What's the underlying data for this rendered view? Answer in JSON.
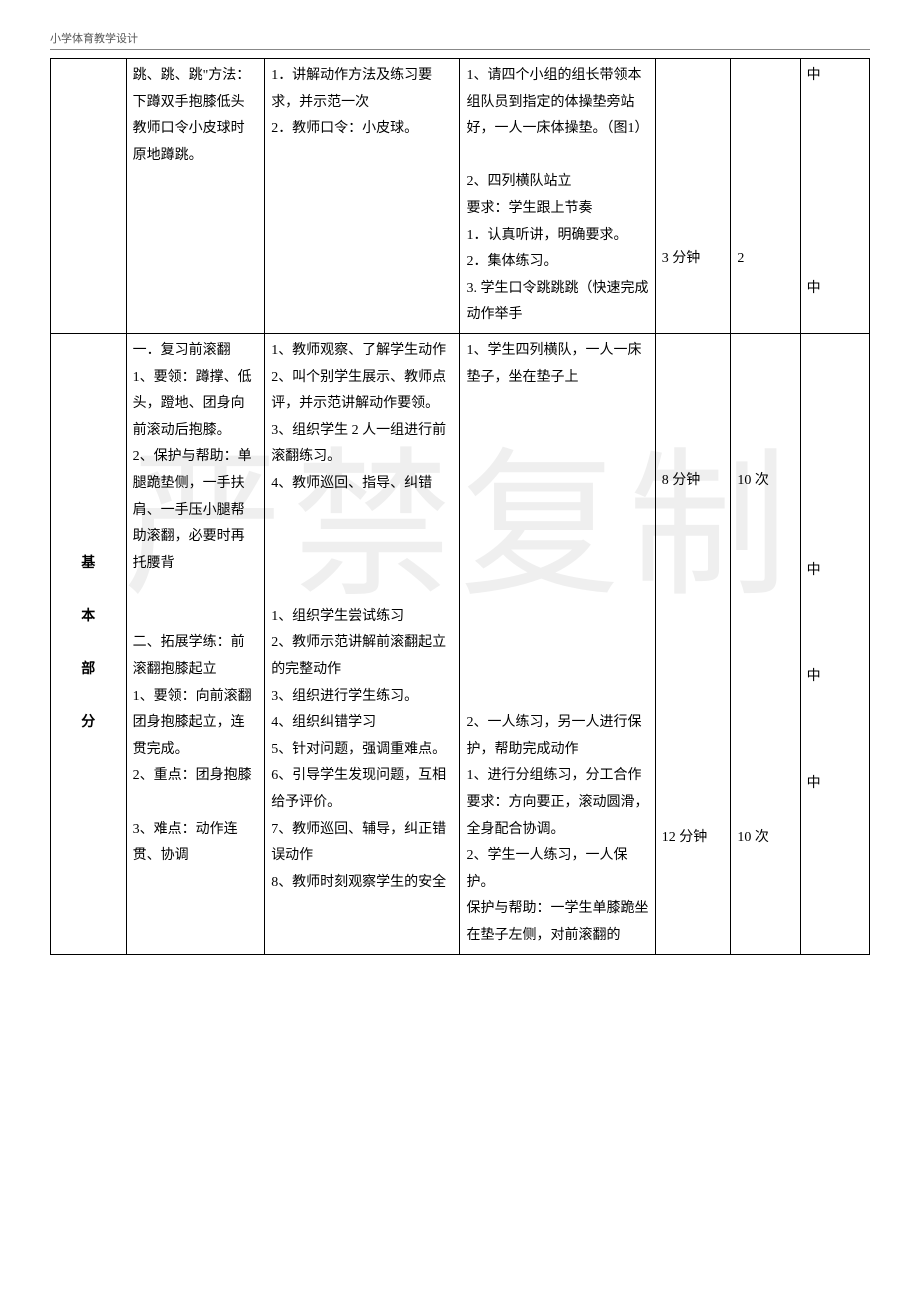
{
  "doc_header": "小学体育教学设计",
  "watermark": "严禁复制",
  "rows": {
    "r1": {
      "c1": "跳、跳、跳\"方法：下蹲双手抱膝低头教师口令小皮球时原地蹲跳。",
      "c2": "1．讲解动作方法及练习要求，并示范一次\n2．教师口令：小皮球。",
      "c3": "1、请四个小组的组长带领本组队员到指定的体操垫旁站好，一人一床体操垫。（图1）\n\n2、四列横队站立\n要求：学生跟上节奏\n1．认真听讲，明确要求。\n2．集体练习。\n3. 学生口令跳跳跳（快速完成动作举手",
      "c4": "3 分钟",
      "c5": "2",
      "c6": "中\n\n\n\n\n\n\n\n中"
    },
    "r2": {
      "c0": "基\n\n本\n\n部\n\n分",
      "c1": "一．复习前滚翻\n1、要领：蹲撑、低头，蹬地、团身向前滚动后抱膝。\n2、保护与帮助：单腿跪垫侧，一手扶肩、一手压小腿帮助滚翻，必要时再托腰背\n\n\n二、拓展学练：前滚翻抱膝起立\n1、要领：向前滚翻团身抱膝起立，连贯完成。\n2、重点：团身抱膝\n\n3、难点：动作连贯、协调",
      "c2": "1、教师观察、了解学生动作\n2、叫个别学生展示、教师点评，并示范讲解动作要领。\n3、组织学生 2 人一组进行前滚翻练习。\n4、教师巡回、指导、纠错\n\n\n\n\n1、组织学生尝试练习\n2、教师示范讲解前滚翻起立的完整动作\n3、组织进行学生练习。\n4、组织纠错学习\n5、针对问题，强调重难点。\n6、引导学生发现问题，互相给予评价。\n7、教师巡回、辅导，纠正错误动作\n8、教师时刻观察学生的安全",
      "c3": "1、学生四列横队，一人一床垫子，坐在垫子上\n\n\n\n\n\n\n\n\n\n\n\n\n2、一人练习，另一人进行保护，帮助完成动作\n1、进行分组练习，分工合作\n要求：方向要正，滚动圆滑，全身配合协调。\n2、学生一人练习，一人保护。\n保护与帮助：一学生单膝跪坐在垫子左侧，对前滚翻的",
      "c4a": "8 分钟",
      "c4b": "12 分钟",
      "c5a": "10 次",
      "c5b": "10 次",
      "c6": "中\n\n\n\n中\n\n\n\n中"
    }
  }
}
